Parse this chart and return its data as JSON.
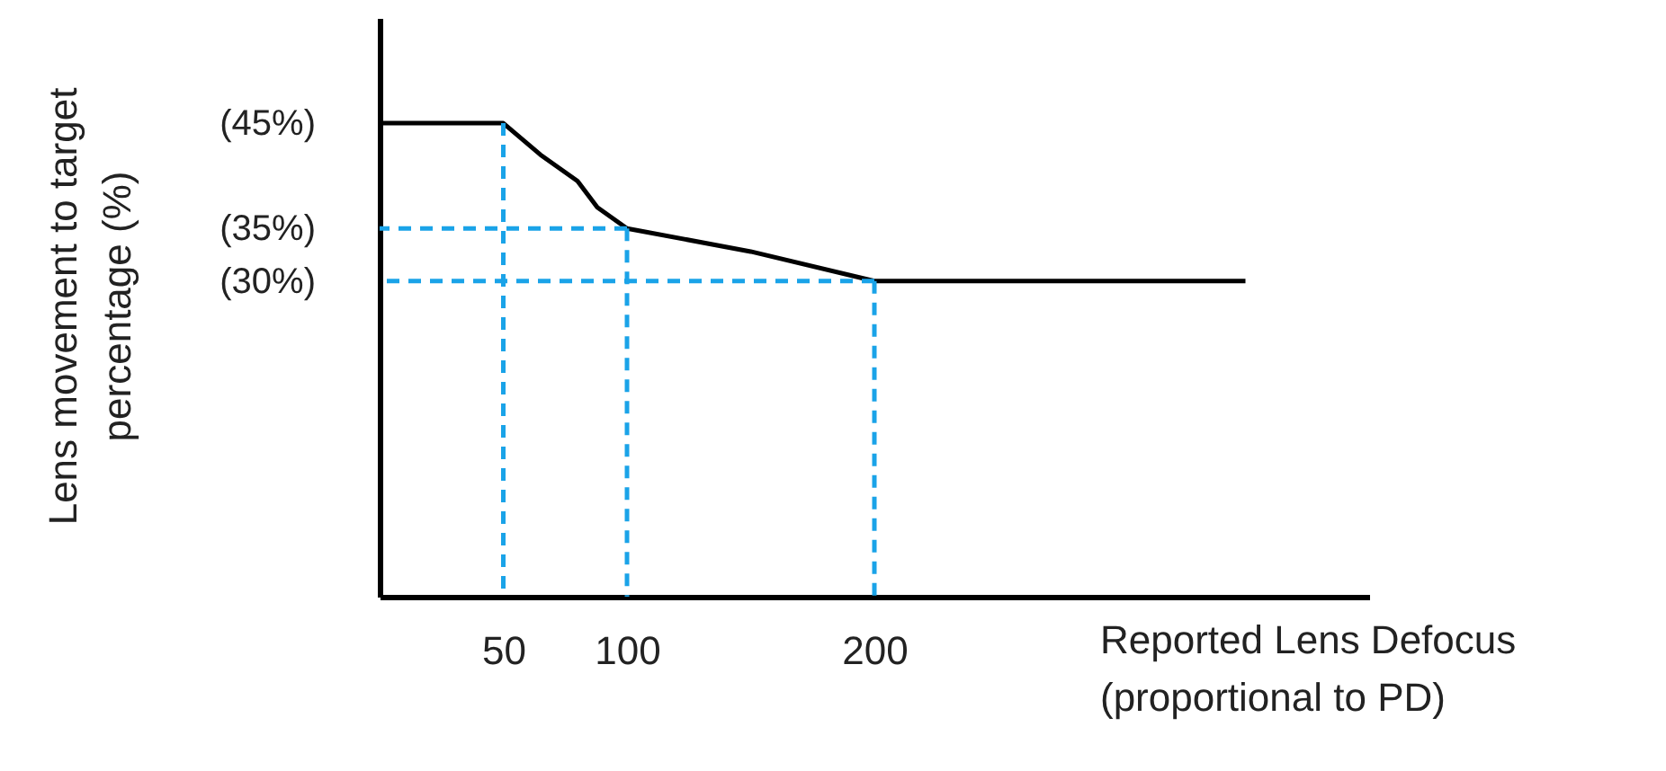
{
  "chart_data": {
    "type": "line",
    "xlabel": "Reported Lens Defocus\n(proportional to PD)",
    "ylabel": "Lens movement to target\npercentage (%)",
    "xlim": [
      0,
      400
    ],
    "ylim": [
      0,
      55
    ],
    "xticks": [
      50,
      100,
      200
    ],
    "grid": false,
    "yticks": [
      {
        "value": 45,
        "label": "(45%)"
      },
      {
        "value": 35,
        "label": "(35%)"
      },
      {
        "value": 30,
        "label": "(30%)"
      }
    ],
    "series": [
      {
        "color": "#000000",
        "line_style": "solid",
        "x": [
          0,
          50,
          65,
          80,
          88,
          100,
          150,
          200,
          350
        ],
        "values": [
          45,
          45,
          42,
          39.5,
          37,
          35,
          32.8,
          30,
          30
        ]
      },
      {
        "color": "#1aa3e8",
        "line_style": "dashed",
        "x": [
          50,
          50
        ],
        "values": [
          45,
          0
        ]
      },
      {
        "color": "#1aa3e8",
        "line_style": "dashed",
        "x": [
          100,
          100
        ],
        "values": [
          35,
          0
        ]
      },
      {
        "color": "#1aa3e8",
        "line_style": "dashed",
        "x": [
          200,
          200
        ],
        "values": [
          30,
          0
        ]
      },
      {
        "color": "#1aa3e8",
        "line_style": "dashed",
        "x": [
          100,
          0
        ],
        "values": [
          35,
          35
        ]
      },
      {
        "color": "#1aa3e8",
        "line_style": "dashed",
        "x": [
          200,
          0
        ],
        "values": [
          30,
          30
        ]
      }
    ]
  }
}
